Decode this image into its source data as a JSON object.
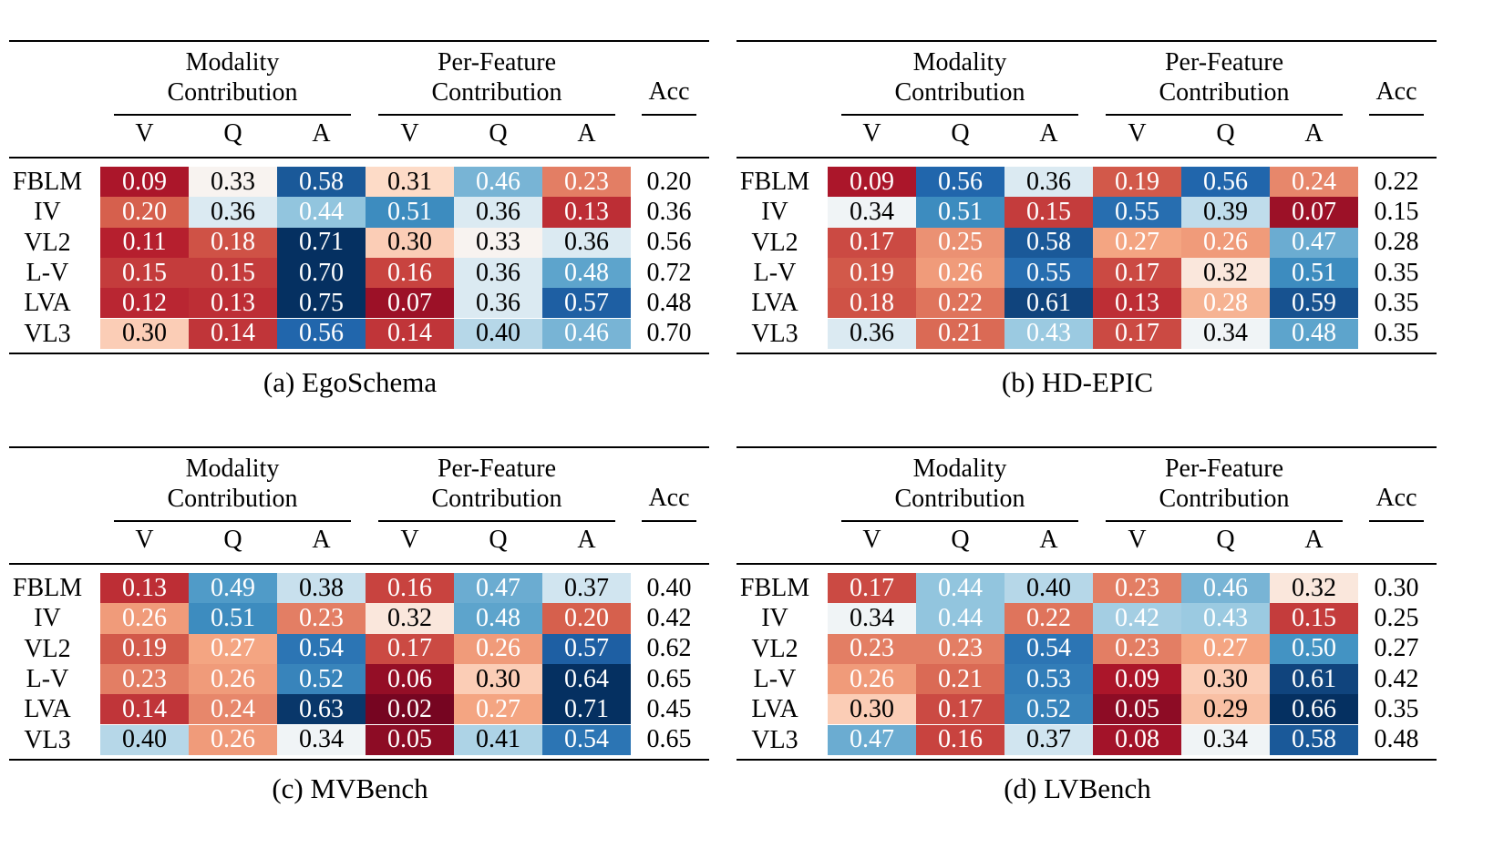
{
  "col_groups": {
    "modality": [
      "Modality",
      "Contribution"
    ],
    "perfeature": [
      "Per-Feature",
      "Contribution"
    ],
    "acc": "Acc"
  },
  "sub_cols": [
    "V",
    "Q",
    "A",
    "V",
    "Q",
    "A"
  ],
  "row_labels": [
    "FBLM",
    "IV",
    "VL2",
    "L-V",
    "LVA",
    "VL3"
  ],
  "colors": {
    "low": "#67001f",
    "mid": "#f7f7f7",
    "high": "#053061"
  },
  "chart_data": [
    {
      "type": "table",
      "title": "(a) EgoSchema",
      "rows": [
        {
          "label": "FBLM",
          "modality": [
            "0.09",
            "0.33",
            "0.58"
          ],
          "perfeature": [
            "0.31",
            "0.46",
            "0.23"
          ],
          "acc": "0.20"
        },
        {
          "label": "IV",
          "modality": [
            "0.20",
            "0.36",
            "0.44"
          ],
          "perfeature": [
            "0.51",
            "0.36",
            "0.13"
          ],
          "acc": "0.36"
        },
        {
          "label": "VL2",
          "modality": [
            "0.11",
            "0.18",
            "0.71"
          ],
          "perfeature": [
            "0.30",
            "0.33",
            "0.36"
          ],
          "acc": "0.56"
        },
        {
          "label": "L-V",
          "modality": [
            "0.15",
            "0.15",
            "0.70"
          ],
          "perfeature": [
            "0.16",
            "0.36",
            "0.48"
          ],
          "acc": "0.72"
        },
        {
          "label": "LVA",
          "modality": [
            "0.12",
            "0.13",
            "0.75"
          ],
          "perfeature": [
            "0.07",
            "0.36",
            "0.57"
          ],
          "acc": "0.48"
        },
        {
          "label": "VL3",
          "modality": [
            "0.30",
            "0.14",
            "0.56"
          ],
          "perfeature": [
            "0.14",
            "0.40",
            "0.46"
          ],
          "acc": "0.70"
        }
      ]
    },
    {
      "type": "table",
      "title": "(b) HD-EPIC",
      "rows": [
        {
          "label": "FBLM",
          "modality": [
            "0.09",
            "0.56",
            "0.36"
          ],
          "perfeature": [
            "0.19",
            "0.56",
            "0.24"
          ],
          "acc": "0.22"
        },
        {
          "label": "IV",
          "modality": [
            "0.34",
            "0.51",
            "0.15"
          ],
          "perfeature": [
            "0.55",
            "0.39",
            "0.07"
          ],
          "acc": "0.15"
        },
        {
          "label": "VL2",
          "modality": [
            "0.17",
            "0.25",
            "0.58"
          ],
          "perfeature": [
            "0.27",
            "0.26",
            "0.47"
          ],
          "acc": "0.28"
        },
        {
          "label": "L-V",
          "modality": [
            "0.19",
            "0.26",
            "0.55"
          ],
          "perfeature": [
            "0.17",
            "0.32",
            "0.51"
          ],
          "acc": "0.35"
        },
        {
          "label": "LVA",
          "modality": [
            "0.18",
            "0.22",
            "0.61"
          ],
          "perfeature": [
            "0.13",
            "0.28",
            "0.59"
          ],
          "acc": "0.35"
        },
        {
          "label": "VL3",
          "modality": [
            "0.36",
            "0.21",
            "0.43"
          ],
          "perfeature": [
            "0.17",
            "0.34",
            "0.48"
          ],
          "acc": "0.35"
        }
      ]
    },
    {
      "type": "table",
      "title": "(c) MVBench",
      "rows": [
        {
          "label": "FBLM",
          "modality": [
            "0.13",
            "0.49",
            "0.38"
          ],
          "perfeature": [
            "0.16",
            "0.47",
            "0.37"
          ],
          "acc": "0.40"
        },
        {
          "label": "IV",
          "modality": [
            "0.26",
            "0.51",
            "0.23"
          ],
          "perfeature": [
            "0.32",
            "0.48",
            "0.20"
          ],
          "acc": "0.42"
        },
        {
          "label": "VL2",
          "modality": [
            "0.19",
            "0.27",
            "0.54"
          ],
          "perfeature": [
            "0.17",
            "0.26",
            "0.57"
          ],
          "acc": "0.62"
        },
        {
          "label": "L-V",
          "modality": [
            "0.23",
            "0.26",
            "0.52"
          ],
          "perfeature": [
            "0.06",
            "0.30",
            "0.64"
          ],
          "acc": "0.65"
        },
        {
          "label": "LVA",
          "modality": [
            "0.14",
            "0.24",
            "0.63"
          ],
          "perfeature": [
            "0.02",
            "0.27",
            "0.71"
          ],
          "acc": "0.45"
        },
        {
          "label": "VL3",
          "modality": [
            "0.40",
            "0.26",
            "0.34"
          ],
          "perfeature": [
            "0.05",
            "0.41",
            "0.54"
          ],
          "acc": "0.65"
        }
      ]
    },
    {
      "type": "table",
      "title": "(d) LVBench",
      "rows": [
        {
          "label": "FBLM",
          "modality": [
            "0.17",
            "0.44",
            "0.40"
          ],
          "perfeature": [
            "0.23",
            "0.46",
            "0.32"
          ],
          "acc": "0.30"
        },
        {
          "label": "IV",
          "modality": [
            "0.34",
            "0.44",
            "0.22"
          ],
          "perfeature": [
            "0.42",
            "0.43",
            "0.15"
          ],
          "acc": "0.25"
        },
        {
          "label": "VL2",
          "modality": [
            "0.23",
            "0.23",
            "0.54"
          ],
          "perfeature": [
            "0.23",
            "0.27",
            "0.50"
          ],
          "acc": "0.27"
        },
        {
          "label": "L-V",
          "modality": [
            "0.26",
            "0.21",
            "0.53"
          ],
          "perfeature": [
            "0.09",
            "0.30",
            "0.61"
          ],
          "acc": "0.42"
        },
        {
          "label": "LVA",
          "modality": [
            "0.30",
            "0.17",
            "0.52"
          ],
          "perfeature": [
            "0.05",
            "0.29",
            "0.66"
          ],
          "acc": "0.35"
        },
        {
          "label": "VL3",
          "modality": [
            "0.47",
            "0.16",
            "0.37"
          ],
          "perfeature": [
            "0.08",
            "0.34",
            "0.58"
          ],
          "acc": "0.48"
        }
      ]
    }
  ]
}
